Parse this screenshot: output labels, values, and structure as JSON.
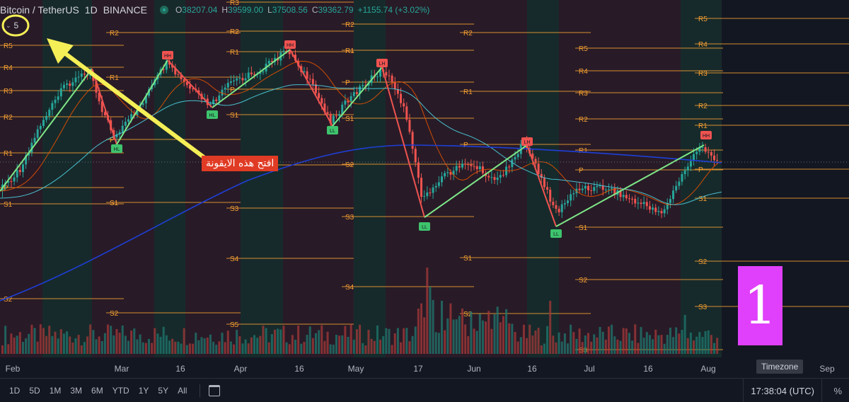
{
  "legend": {
    "symbol": "Bitcoin / TetherUS",
    "interval": "1D",
    "exchange": "BINANCE",
    "o_label": "O",
    "o": "38207.04",
    "h_label": "H",
    "h": "39599.00",
    "l_label": "L",
    "l": "37508.56",
    "c_label": "C",
    "c": "39362.79",
    "change": "+1155.74 (+3.02%)"
  },
  "collapse_count": "5",
  "annotation_text": "افتح هذه الايقونة",
  "big_number": "1",
  "time_axis": [
    "Feb",
    "Mar",
    "16",
    "Apr",
    "16",
    "May",
    "17",
    "Jun",
    "16",
    "Jul",
    "16",
    "Aug",
    "Sep"
  ],
  "timezone_tooltip": "Timezone",
  "range_buttons": [
    "1D",
    "5D",
    "1M",
    "3M",
    "6M",
    "YTD",
    "1Y",
    "5Y",
    "All"
  ],
  "clock": "17:38:04 (UTC)",
  "percent_toggle": "%",
  "colors": {
    "background": "#131722",
    "up": "#26a69a",
    "down": "#ef5350",
    "pivot": "#f7a031",
    "zigzag_up": "#7ee787",
    "zigzag_down": "#ef5350",
    "arrow": "#f5ef57",
    "annotation_bg": "#e03b24",
    "big_number_bg": "#e040fb"
  },
  "chart_data": {
    "type": "candlestick",
    "title": "Bitcoin / TetherUS 1D BINANCE",
    "x_labels": [
      "Feb",
      "Mar",
      "16",
      "Apr",
      "16",
      "May",
      "17",
      "Jun",
      "16",
      "Jul",
      "16",
      "Aug",
      "Sep"
    ],
    "last_candle": {
      "open": 38207.04,
      "high": 39599.0,
      "low": 37508.56,
      "close": 39362.79
    },
    "pivot_level_labels": [
      "R5",
      "R4",
      "R3",
      "R2",
      "R1",
      "P",
      "S1",
      "S2",
      "S3",
      "S4",
      "S5"
    ],
    "swing_labels": [
      "HL",
      "HH",
      "HL",
      "HH",
      "LL",
      "LH",
      "LL",
      "LH",
      "LL",
      "HH"
    ],
    "overlays": [
      "zigzag",
      "pivot points",
      "moving averages",
      "volume"
    ],
    "grid": false
  }
}
